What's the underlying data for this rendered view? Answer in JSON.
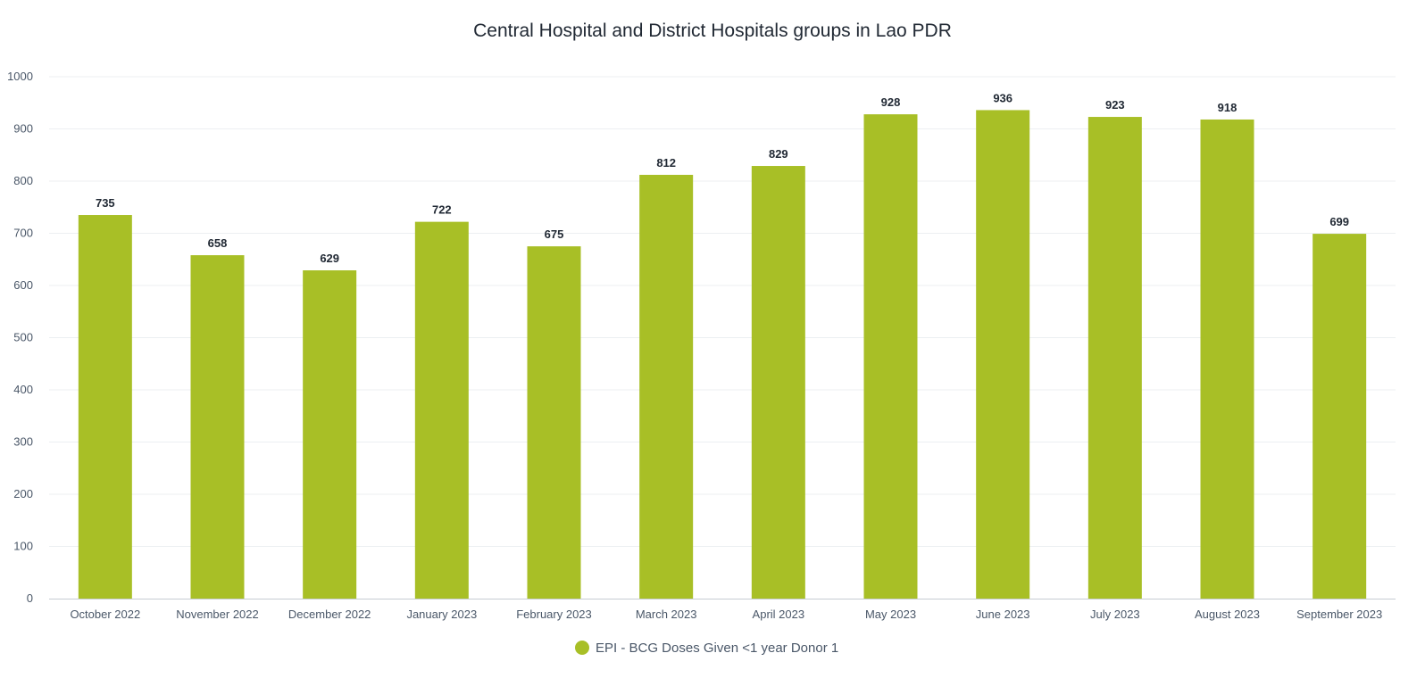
{
  "chart_data": {
    "type": "bar",
    "title": "Central Hospital and District Hospitals groups in Lao PDR",
    "xlabel": "",
    "ylabel": "",
    "ylim": [
      0,
      1000
    ],
    "yticks": [
      0,
      100,
      200,
      300,
      400,
      500,
      600,
      700,
      800,
      900,
      1000
    ],
    "grid": true,
    "legend_position": "bottom-center",
    "categories": [
      "October 2022",
      "November 2022",
      "December 2022",
      "January 2023",
      "February 2023",
      "March 2023",
      "April 2023",
      "May 2023",
      "June 2023",
      "July 2023",
      "August 2023",
      "September 2023"
    ],
    "series": [
      {
        "name": "EPI - BCG Doses Given <1 year Donor 1",
        "color": "#a8bf26",
        "values": [
          735,
          658,
          629,
          722,
          675,
          812,
          829,
          928,
          936,
          923,
          918,
          699
        ]
      }
    ]
  }
}
